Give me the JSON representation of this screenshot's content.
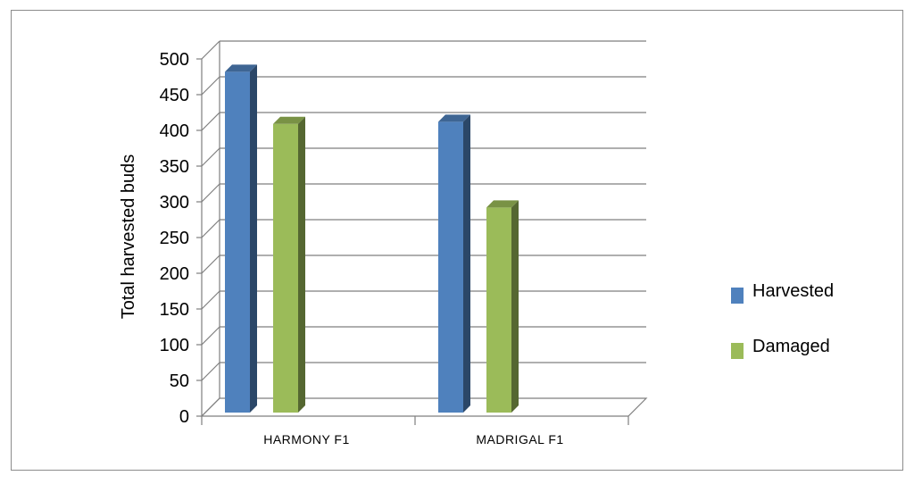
{
  "chart_data": {
    "type": "bar",
    "categories": [
      "HARMONY F1",
      "MADRIGAL F1"
    ],
    "series": [
      {
        "name": "Harvested",
        "values": [
          492,
          422
        ],
        "color": "#4f81bd"
      },
      {
        "name": "Damaged",
        "values": [
          419,
          302
        ],
        "color": "#9bbb59"
      }
    ],
    "ylabel": "Total harvested buds",
    "xlabel": "",
    "ylim": [
      0,
      500
    ],
    "yticks": [
      0,
      50,
      100,
      150,
      200,
      250,
      300,
      350,
      400,
      450,
      500
    ],
    "grid": true,
    "legend": "right",
    "style": "3d-column"
  }
}
